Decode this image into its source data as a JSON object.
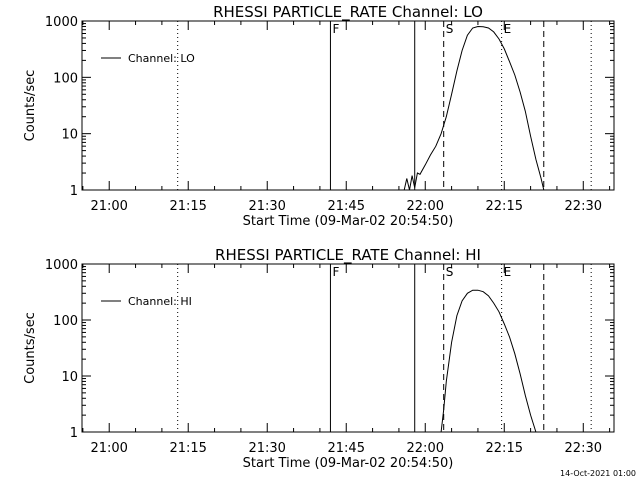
{
  "footer_stamp": "14-Oct-2021 01:00",
  "chart_data": [
    {
      "type": "line",
      "title": "RHESSI PARTICLE_RATE Channel: LO",
      "xlabel": "Start Time (09-Mar-02 20:54:50)",
      "ylabel": "Counts/sec",
      "y_scale": "log",
      "ylim": [
        1,
        1000
      ],
      "y_ticks": [
        "1",
        "10",
        "100",
        "1000"
      ],
      "xlim": [
        "20:54:50",
        "22:35:50"
      ],
      "x_ticks": [
        "21:00",
        "21:15",
        "21:30",
        "21:45",
        "22:00",
        "22:15",
        "22:30"
      ],
      "legend": {
        "label": "Channel: LO",
        "placement": "top-left"
      },
      "grid": false,
      "markers": [
        {
          "time": "21:13:00",
          "style": "dotted",
          "label": ""
        },
        {
          "time": "21:42:00",
          "style": "solid",
          "label": "F"
        },
        {
          "time": "21:58:00",
          "style": "solid",
          "label": ""
        },
        {
          "time": "22:03:30",
          "style": "dashed",
          "label": "S"
        },
        {
          "time": "22:14:30",
          "style": "dotted",
          "label": "E"
        },
        {
          "time": "22:22:30",
          "style": "dashed",
          "label": ""
        },
        {
          "time": "22:31:30",
          "style": "dotted",
          "label": ""
        }
      ],
      "series": [
        {
          "name": "Channel: LO",
          "x": [
            "21:56:00",
            "21:56:30",
            "21:57:00",
            "21:57:30",
            "21:58:00",
            "21:58:30",
            "21:59:00",
            "22:00:00",
            "22:01:00",
            "22:02:00",
            "22:03:00",
            "22:04:00",
            "22:05:00",
            "22:06:00",
            "22:07:00",
            "22:08:00",
            "22:09:00",
            "22:10:00",
            "22:11:00",
            "22:12:00",
            "22:13:00",
            "22:14:00",
            "22:15:00",
            "22:16:00",
            "22:17:00",
            "22:18:00",
            "22:19:00",
            "22:20:00",
            "22:21:00",
            "22:22:00",
            "22:22:30"
          ],
          "y": [
            1.0,
            1.6,
            1.0,
            1.8,
            1.1,
            2.0,
            1.9,
            2.8,
            4.2,
            6.0,
            10,
            20,
            50,
            130,
            300,
            560,
            750,
            800,
            790,
            750,
            640,
            480,
            320,
            190,
            110,
            55,
            25,
            9,
            3.5,
            1.6,
            1.0
          ]
        }
      ]
    },
    {
      "type": "line",
      "title": "RHESSI PARTICLE_RATE Channel: HI",
      "xlabel": "Start Time (09-Mar-02 20:54:50)",
      "ylabel": "Counts/sec",
      "y_scale": "log",
      "ylim": [
        1,
        1000
      ],
      "y_ticks": [
        "1",
        "10",
        "100",
        "1000"
      ],
      "xlim": [
        "20:54:50",
        "22:35:50"
      ],
      "x_ticks": [
        "21:00",
        "21:15",
        "21:30",
        "21:45",
        "22:00",
        "22:15",
        "22:30"
      ],
      "legend": {
        "label": "Channel: HI",
        "placement": "top-left"
      },
      "grid": false,
      "markers": [
        {
          "time": "21:13:00",
          "style": "dotted",
          "label": ""
        },
        {
          "time": "21:42:00",
          "style": "solid",
          "label": "F"
        },
        {
          "time": "21:58:00",
          "style": "solid",
          "label": ""
        },
        {
          "time": "22:03:30",
          "style": "dashed",
          "label": "S"
        },
        {
          "time": "22:14:30",
          "style": "dotted",
          "label": "E"
        },
        {
          "time": "22:22:30",
          "style": "dashed",
          "label": ""
        },
        {
          "time": "22:31:30",
          "style": "dotted",
          "label": ""
        }
      ],
      "series": [
        {
          "name": "Channel: HI",
          "x": [
            "22:03:00",
            "22:03:30",
            "22:04:00",
            "22:05:00",
            "22:06:00",
            "22:07:00",
            "22:08:00",
            "22:09:00",
            "22:10:00",
            "22:11:00",
            "22:12:00",
            "22:13:00",
            "22:14:00",
            "22:15:00",
            "22:16:00",
            "22:17:00",
            "22:18:00",
            "22:19:00",
            "22:20:00",
            "22:21:00"
          ],
          "y": [
            1.0,
            2.5,
            8,
            40,
            120,
            220,
            300,
            340,
            340,
            320,
            270,
            200,
            140,
            85,
            50,
            25,
            11,
            4.5,
            2.0,
            1.0
          ]
        }
      ]
    }
  ]
}
